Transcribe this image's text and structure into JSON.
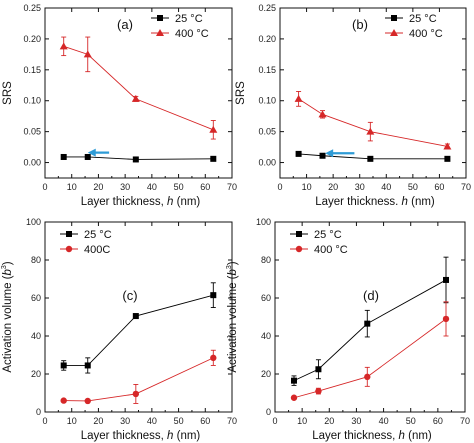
{
  "chart_data": [
    {
      "type": "line",
      "panel_label": "(a)",
      "xlabel": "Layer thickness, h (nm)",
      "xlabel_parts": [
        "Layer thickness, ",
        "h",
        " (nm)"
      ],
      "ylabel": "SRS",
      "xlim": [
        0,
        70
      ],
      "ylim": [
        -0.025,
        0.25
      ],
      "xticks": [
        0,
        10,
        20,
        30,
        40,
        50,
        60,
        70
      ],
      "yticks": [
        0.0,
        0.05,
        0.1,
        0.15,
        0.2,
        0.25
      ],
      "ytick_labels": [
        "0.00",
        "0.05",
        "0.10",
        "0.15",
        "0.20",
        "0.25"
      ],
      "legend_position": "top-right",
      "arrow": {
        "from_x": 24,
        "to_x": 16,
        "y": 0.016,
        "color": "#2e9bd6"
      },
      "series": [
        {
          "name": "25 °C",
          "color": "#000000",
          "marker": "square",
          "x": [
            7,
            16,
            34,
            63
          ],
          "y": [
            0.009,
            0.009,
            0.005,
            0.006
          ],
          "err": [
            0.002,
            0.002,
            0.002,
            0.002
          ]
        },
        {
          "name": "400 °C",
          "color": "#d62728",
          "marker": "triangle",
          "x": [
            7,
            16,
            34,
            63
          ],
          "y": [
            0.188,
            0.175,
            0.103,
            0.053
          ],
          "err": [
            0.015,
            0.028,
            0.004,
            0.015
          ]
        }
      ]
    },
    {
      "type": "line",
      "panel_label": "(b)",
      "xlabel": "Layer thickness. h (nm)",
      "xlabel_parts": [
        "Layer thickness. ",
        "h",
        " (nm)"
      ],
      "ylabel": "SRS",
      "xlim": [
        0,
        70
      ],
      "ylim": [
        -0.025,
        0.25
      ],
      "xticks": [
        0,
        10,
        20,
        30,
        40,
        50,
        60,
        70
      ],
      "yticks": [
        0.0,
        0.05,
        0.1,
        0.15,
        0.2,
        0.25
      ],
      "ytick_labels": [
        "0.00",
        "0.05",
        "0.10",
        "0.15",
        "0.20",
        "0.25"
      ],
      "legend_position": "top-right",
      "arrow": {
        "from_x": 28,
        "to_x": 17,
        "y": 0.015,
        "color": "#2e9bd6"
      },
      "series": [
        {
          "name": "25 °C",
          "color": "#000000",
          "marker": "square",
          "x": [
            7,
            16,
            34,
            63
          ],
          "y": [
            0.014,
            0.011,
            0.006,
            0.006
          ],
          "err": [
            0.002,
            0.002,
            0.002,
            0.002
          ]
        },
        {
          "name": "400 °C",
          "color": "#d62728",
          "marker": "triangle",
          "x": [
            7,
            16,
            34,
            63
          ],
          "y": [
            0.103,
            0.078,
            0.05,
            0.026
          ],
          "err": [
            0.012,
            0.006,
            0.015,
            0.004
          ]
        }
      ]
    },
    {
      "type": "line",
      "panel_label": "(c)",
      "xlabel": "Layer thickness, h (nm)",
      "xlabel_parts": [
        "Layer thickness, ",
        "h",
        " (nm)"
      ],
      "ylabel": "Activation volume (b³)",
      "ylabel_parts": [
        "Activation volume (",
        "b",
        "3",
        ")"
      ],
      "xlim": [
        0,
        70
      ],
      "ylim": [
        0,
        100
      ],
      "xticks": [
        0,
        10,
        20,
        30,
        40,
        50,
        60,
        70
      ],
      "yticks": [
        0,
        20,
        40,
        60,
        80,
        100
      ],
      "ytick_labels": [
        "0",
        "20",
        "40",
        "60",
        "80",
        "100"
      ],
      "legend_position": "top-left",
      "series": [
        {
          "name": "25 °C",
          "color": "#000000",
          "marker": "square",
          "x": [
            7,
            16,
            34,
            63
          ],
          "y": [
            24.5,
            24.5,
            50.5,
            61.5
          ],
          "err": [
            2.5,
            4.0,
            0.8,
            6.5
          ]
        },
        {
          "name": "400C",
          "color": "#d62728",
          "marker": "circle",
          "x": [
            7,
            16,
            34,
            63
          ],
          "y": [
            6.0,
            5.8,
            9.5,
            28.5
          ],
          "err": [
            0.5,
            0.5,
            5.0,
            4.0
          ]
        }
      ]
    },
    {
      "type": "line",
      "panel_label": "(d)",
      "xlabel": "Layer thickness, h (nm)",
      "xlabel_parts": [
        "Layer thickness, ",
        "h",
        " (nm)"
      ],
      "ylabel": "Activation volume (b³)",
      "ylabel_parts": [
        "Activation volume (",
        "b",
        "3",
        ")"
      ],
      "xlim": [
        0,
        70
      ],
      "ylim": [
        0,
        100
      ],
      "xticks": [
        0,
        10,
        20,
        30,
        40,
        50,
        60,
        70
      ],
      "yticks": [
        0,
        20,
        40,
        60,
        80,
        100
      ],
      "ytick_labels": [
        "0",
        "20",
        "40",
        "60",
        "80",
        "100"
      ],
      "legend_position": "top-left",
      "series": [
        {
          "name": "25 °C",
          "color": "#000000",
          "marker": "square",
          "x": [
            7,
            16,
            34,
            63
          ],
          "y": [
            16.5,
            22.5,
            46.5,
            69.5
          ],
          "err": [
            2.5,
            5.0,
            7.0,
            12.0
          ]
        },
        {
          "name": "400 °C",
          "color": "#d62728",
          "marker": "circle",
          "x": [
            7,
            16,
            34,
            63
          ],
          "y": [
            7.5,
            11.0,
            18.5,
            49.0
          ],
          "err": [
            0.8,
            1.5,
            5.0,
            9.0
          ]
        }
      ]
    }
  ]
}
